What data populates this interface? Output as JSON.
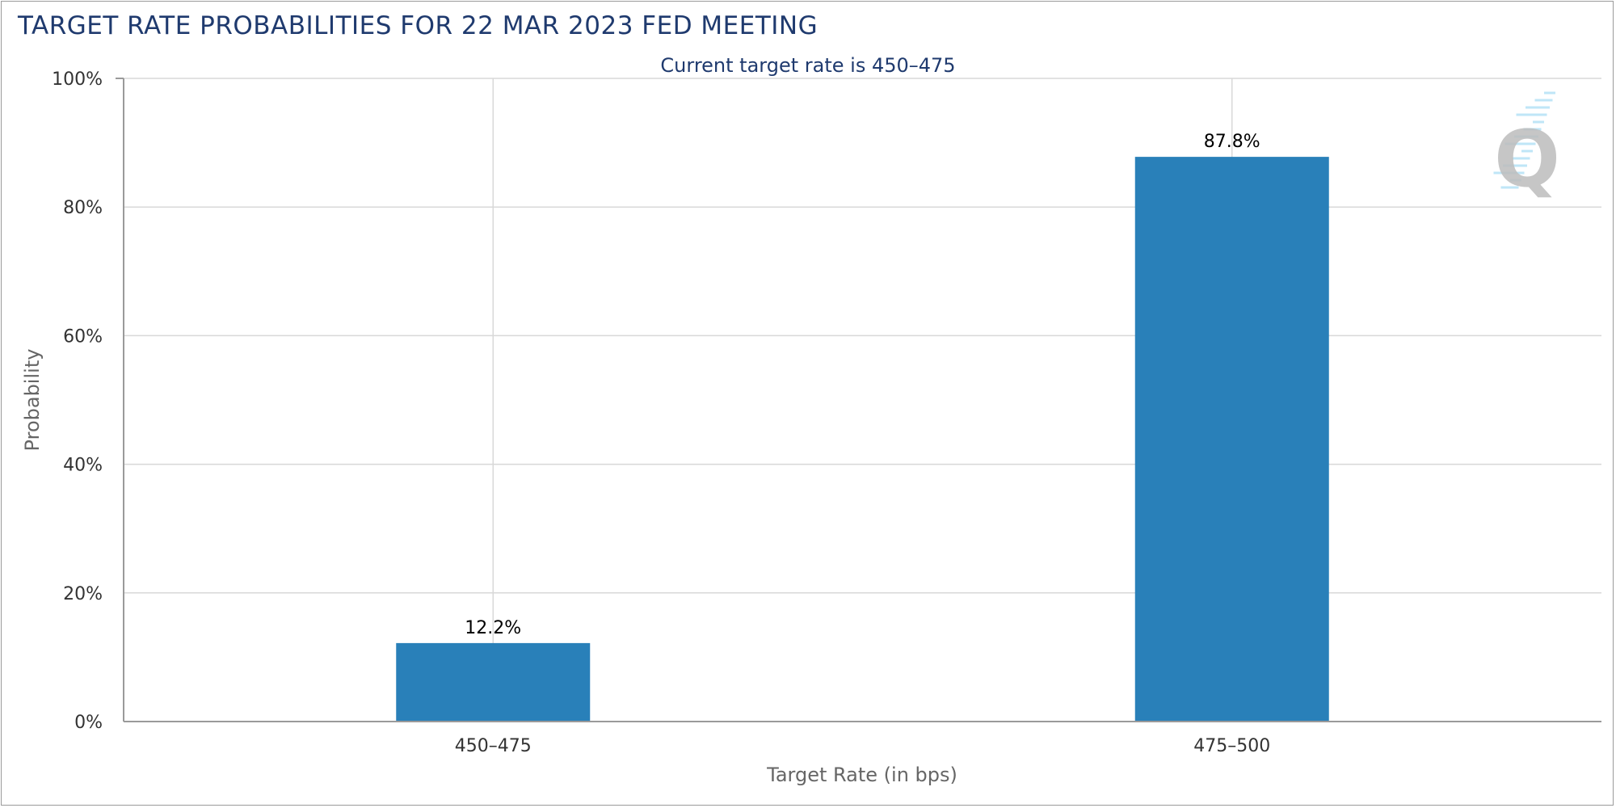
{
  "colors": {
    "bar": "#2980b9",
    "title": "#1f3a6e",
    "grid": "#d8d8d8",
    "axis": "#9a9a9a",
    "logo": "#bdbdbd",
    "logo_accent": "#bfe6f7"
  },
  "logo": {
    "icon": "q-logo-icon",
    "letter": "Q"
  },
  "chart_data": {
    "type": "bar",
    "title": "TARGET RATE PROBABILITIES FOR 22 MAR 2023 FED MEETING",
    "subtitle": "Current target rate is 450–475",
    "xlabel": "Target Rate (in bps)",
    "ylabel": "Probability",
    "categories": [
      "450–475",
      "475–500"
    ],
    "values": [
      12.2,
      87.8
    ],
    "value_labels": [
      "12.2%",
      "87.8%"
    ],
    "ylim": [
      0,
      100
    ],
    "yticks": [
      0,
      20,
      40,
      60,
      80,
      100
    ],
    "ytick_labels": [
      "0%",
      "20%",
      "40%",
      "60%",
      "80%",
      "100%"
    ],
    "grid": true,
    "legend": "none"
  }
}
